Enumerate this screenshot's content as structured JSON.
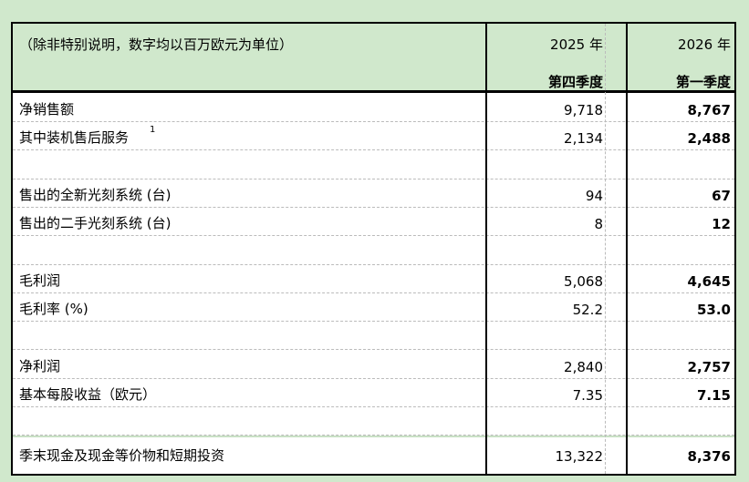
{
  "header": {
    "note": "（除非特别说明，数字均以百万欧元为单位）",
    "col1_year": "2025 年",
    "col1_quarter": "第四季度",
    "col2_year": "2026 年",
    "col2_quarter": "第一季度"
  },
  "rows": [
    {
      "label": "净销售额",
      "sup": "",
      "v1": "9,718",
      "v2": "8,767"
    },
    {
      "label": "其中装机售后服务",
      "sup": "1",
      "v1": "2,134",
      "v2": "2,488"
    },
    {
      "label": "",
      "sup": "",
      "v1": "",
      "v2": ""
    },
    {
      "label": "售出的全新光刻系统 (台)",
      "sup": "",
      "v1": "94",
      "v2": "67"
    },
    {
      "label": "售出的二手光刻系统 (台)",
      "sup": "",
      "v1": "8",
      "v2": "12"
    },
    {
      "label": "",
      "sup": "",
      "v1": "",
      "v2": ""
    },
    {
      "label": "毛利润",
      "sup": "",
      "v1": "5,068",
      "v2": "4,645"
    },
    {
      "label": "毛利率 (%)",
      "sup": "",
      "v1": "52.2",
      "v2": "53.0"
    },
    {
      "label": "",
      "sup": "",
      "v1": "",
      "v2": ""
    },
    {
      "label": "净利润",
      "sup": "",
      "v1": "2,840",
      "v2": "2,757"
    },
    {
      "label": "基本每股收益（欧元）",
      "sup": "",
      "v1": "7.35",
      "v2": "7.15"
    },
    {
      "label": "",
      "sup": "",
      "v1": "",
      "v2": ""
    },
    {
      "label": "季末现金及现金等价物和短期投资",
      "sup": "",
      "v1": "13,322",
      "v2": "8,376"
    }
  ]
}
